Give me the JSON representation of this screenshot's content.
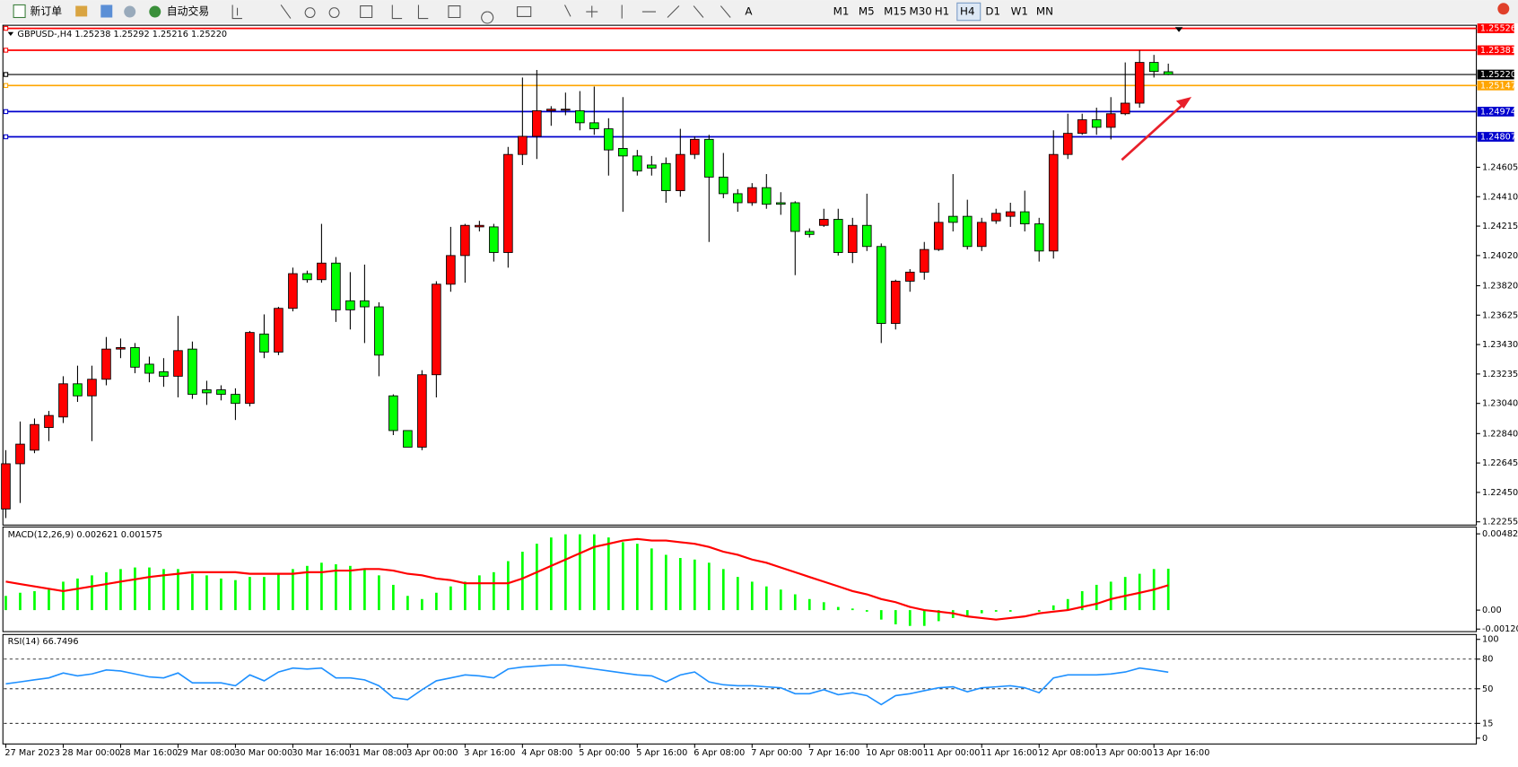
{
  "toolbar": {
    "buttons": [
      "新订单",
      "自动交易"
    ],
    "timeframes": [
      "M1",
      "M5",
      "M15",
      "M30",
      "H1",
      "H4",
      "D1",
      "W1",
      "MN"
    ],
    "active_timeframe": 5
  },
  "chart_data": [
    {
      "type": "candlestick",
      "title": "GBPUSD-,H4  1.25238 1.25292 1.25216 1.25220",
      "categories": [
        "27 Mar 2023",
        null,
        null,
        null,
        "28 Mar 00:00",
        null,
        null,
        null,
        "28 Mar 16:00",
        null,
        null,
        null,
        "29 Mar 08:00",
        null,
        null,
        null,
        "30 Mar 00:00",
        null,
        null,
        null,
        "30 Mar 16:00",
        null,
        null,
        null,
        "31 Mar 08:00",
        null,
        null,
        null,
        "3 Apr 00:00",
        null,
        null,
        null,
        "3 Apr 16:00",
        null,
        null,
        null,
        "4 Apr 08:00",
        null,
        null,
        null,
        "5 Apr 00:00",
        null,
        null,
        null,
        "5 Apr 16:00",
        null,
        null,
        null,
        "6 Apr 08:00",
        null,
        null,
        null,
        "7 Apr 00:00",
        null,
        null,
        null,
        "7 Apr 16:00",
        null,
        null,
        null,
        "10 Apr 08:00",
        null,
        null,
        null,
        "11 Apr 00:00",
        null,
        null,
        null,
        "11 Apr 16:00",
        null,
        null,
        null,
        "12 Apr 08:00",
        null,
        null,
        null,
        "13 Apr 00:00",
        null,
        null,
        null,
        "13 Apr 16:00",
        null
      ],
      "open": [
        1.2234,
        1.2264,
        1.2273,
        1.2288,
        1.2295,
        1.2317,
        1.2309,
        1.232,
        1.234,
        1.2341,
        1.233,
        1.2325,
        1.2322,
        1.234,
        1.2313,
        1.2313,
        1.231,
        1.2304,
        1.235,
        1.2338,
        1.2367,
        1.239,
        1.2386,
        1.2397,
        1.2372,
        1.2372,
        1.2368,
        1.2309,
        1.2286,
        1.2275,
        1.2323,
        1.2383,
        1.2402,
        1.2421,
        1.2421,
        1.2404,
        1.2469,
        1.2481,
        1.2498,
        1.2499,
        1.2498,
        1.249,
        1.2486,
        1.2473,
        1.2468,
        1.2462,
        1.2463,
        1.2445,
        1.2469,
        1.2479,
        1.2454,
        1.2443,
        1.2437,
        1.2447,
        1.2437,
        1.2437,
        1.2418,
        1.2422,
        1.2426,
        1.2404,
        1.2422,
        1.2408,
        1.2357,
        1.2385,
        1.2391,
        1.2406,
        1.2428,
        1.2428,
        1.2408,
        1.2425,
        1.2428,
        1.2431,
        1.2423,
        1.2405,
        1.2469,
        1.2483,
        1.2492,
        1.2487,
        1.2496,
        1.2503,
        1.253,
        1.25238
      ],
      "high": [
        1.2273,
        1.2292,
        1.2294,
        1.2299,
        1.2322,
        1.2329,
        1.2329,
        1.2348,
        1.2347,
        1.2344,
        1.2335,
        1.2334,
        1.2362,
        1.2345,
        1.2319,
        1.2316,
        1.2314,
        1.2352,
        1.2363,
        1.2368,
        1.2394,
        1.2392,
        1.2423,
        1.2401,
        1.2391,
        1.2396,
        1.2371,
        1.231,
        1.2286,
        1.2326,
        1.2385,
        1.2421,
        1.2423,
        1.2425,
        1.2423,
        1.2474,
        1.252,
        1.2525,
        1.2501,
        1.251,
        1.2511,
        1.2514,
        1.2493,
        1.2507,
        1.2472,
        1.2468,
        1.2467,
        1.2486,
        1.2481,
        1.2482,
        1.247,
        1.2446,
        1.245,
        1.2456,
        1.2444,
        1.2438,
        1.242,
        1.2433,
        1.2433,
        1.2427,
        1.2443,
        1.241,
        1.2386,
        1.2393,
        1.2411,
        1.2437,
        1.2456,
        1.2439,
        1.2427,
        1.2433,
        1.2437,
        1.2445,
        1.2427,
        1.2485,
        1.2496,
        1.2496,
        1.25,
        1.2507,
        1.253,
        1.2538,
        1.2535,
        1.25292
      ],
      "low": [
        1.2228,
        1.2238,
        1.2271,
        1.2279,
        1.2291,
        1.2305,
        1.2279,
        1.2316,
        1.2334,
        1.2324,
        1.2318,
        1.2315,
        1.2308,
        1.2307,
        1.2303,
        1.2306,
        1.2293,
        1.2302,
        1.2334,
        1.2336,
        1.2365,
        1.2384,
        1.2384,
        1.2358,
        1.2353,
        1.2344,
        1.2322,
        1.2283,
        1.2275,
        1.2273,
        1.2308,
        1.2378,
        1.2384,
        1.2418,
        1.2398,
        1.2394,
        1.2462,
        1.2466,
        1.2488,
        1.2495,
        1.2485,
        1.2482,
        1.2455,
        1.2431,
        1.2455,
        1.2455,
        1.2437,
        1.2441,
        1.2466,
        1.2411,
        1.244,
        1.2431,
        1.2435,
        1.2433,
        1.2429,
        1.2389,
        1.2414,
        1.2421,
        1.2402,
        1.2397,
        1.2405,
        1.2344,
        1.2353,
        1.2378,
        1.2386,
        1.2405,
        1.2418,
        1.2406,
        1.2405,
        1.2423,
        1.2421,
        1.2418,
        1.2398,
        1.24,
        1.2466,
        1.2482,
        1.2482,
        1.2479,
        1.2495,
        1.25,
        1.252,
        1.25216
      ],
      "close": [
        1.2264,
        1.2277,
        1.229,
        1.2296,
        1.2317,
        1.2309,
        1.232,
        1.234,
        1.2341,
        1.2328,
        1.2324,
        1.2322,
        1.2339,
        1.231,
        1.2311,
        1.231,
        1.2304,
        1.2351,
        1.2338,
        1.2367,
        1.239,
        1.2386,
        1.2397,
        1.2366,
        1.2366,
        1.2368,
        1.2336,
        1.2286,
        1.2275,
        1.2323,
        1.2383,
        1.2402,
        1.2422,
        1.2422,
        1.2404,
        1.2469,
        1.2481,
        1.2498,
        1.2499,
        1.2499,
        1.249,
        1.2486,
        1.2472,
        1.2468,
        1.2458,
        1.246,
        1.2445,
        1.2469,
        1.2479,
        1.2454,
        1.2443,
        1.2437,
        1.2447,
        1.2436,
        1.2436,
        1.2418,
        1.2416,
        1.2426,
        1.2404,
        1.2422,
        1.2408,
        1.2357,
        1.2385,
        1.2391,
        1.2406,
        1.2424,
        1.2424,
        1.2408,
        1.2424,
        1.243,
        1.2431,
        1.2423,
        1.2405,
        1.2469,
        1.2483,
        1.2492,
        1.2487,
        1.2496,
        1.2503,
        1.253,
        1.2524,
        1.2522
      ],
      "up_color": "#ff0000",
      "down_color": "#00ff00",
      "ylim": [
        1.2224,
        1.2554
      ],
      "yticks": [
        1.22255,
        {
          "value": 1.2245,
          "label": "1.22450"
        },
        1.22645,
        {
          "value": 1.2284,
          "label": "1.22840"
        },
        {
          "value": 1.2304,
          "label": "1.23040"
        },
        1.23235,
        {
          "value": 1.2343,
          "label": "1.23430"
        },
        1.23625,
        {
          "value": 1.2382,
          "label": "1.23820"
        },
        {
          "value": 1.2402,
          "label": "1.24020"
        },
        1.24215,
        {
          "value": 1.2441,
          "label": "1.24410"
        },
        1.24605
      ],
      "levels": [
        {
          "value": 1.25526,
          "color": "#ff0000"
        },
        {
          "value": 1.25381,
          "color": "#ff0000"
        },
        {
          "value": 1.2522,
          "label": "1.25220",
          "color": "#000000"
        },
        {
          "value": 1.25147,
          "color": "#ffa500"
        },
        {
          "value": 1.24974,
          "color": "#0000cd"
        },
        {
          "value": 1.24807,
          "color": "#0000cd"
        }
      ]
    },
    {
      "type": "macd",
      "title": "MACD(12,26,9) 0.002621 0.001575",
      "values": [
        0.0009,
        0.0011,
        0.0012,
        0.0013,
        0.0018,
        0.002,
        0.0022,
        0.0024,
        0.0026,
        0.0027,
        0.0027,
        0.0026,
        0.0026,
        0.0023,
        0.0022,
        0.002,
        0.0019,
        0.0021,
        0.0021,
        0.0023,
        0.0026,
        0.0028,
        0.003,
        0.0029,
        0.0028,
        0.0026,
        0.0022,
        0.0016,
        0.0009,
        0.0007,
        0.0011,
        0.0015,
        0.0018,
        0.0022,
        0.0024,
        0.0031,
        0.0037,
        0.0042,
        0.0046,
        0.0048,
        0.0048,
        0.0048,
        0.0046,
        0.0043,
        0.0042,
        0.0039,
        0.0035,
        0.0033,
        0.0032,
        0.003,
        0.0026,
        0.0021,
        0.0018,
        0.0015,
        0.0013,
        0.001,
        0.0007,
        0.0005,
        0.0002,
        0.0001,
        -0.0001,
        -0.0006,
        -0.0009,
        -0.001,
        -0.001,
        -0.0007,
        -0.0005,
        -0.0004,
        -0.0002,
        -0.0001,
        -0.0001,
        0,
        -0.0001,
        0.0003,
        0.0007,
        0.0012,
        0.0016,
        0.0018,
        0.0021,
        0.0023,
        0.0026,
        0.002621
      ],
      "color": "#00ff00",
      "signal": [
        0.0018,
        0.00165,
        0.0015,
        0.00135,
        0.0012,
        0.00135,
        0.0015,
        0.00165,
        0.0018,
        0.00195,
        0.0021,
        0.0022,
        0.0023,
        0.0024,
        0.0024,
        0.0024,
        0.0024,
        0.0023,
        0.0023,
        0.0023,
        0.0023,
        0.0024,
        0.0024,
        0.0025,
        0.0025,
        0.0026,
        0.0026,
        0.0025,
        0.0023,
        0.0022,
        0.002,
        0.0019,
        0.0017,
        0.0017,
        0.0017,
        0.0017,
        0.002,
        0.0024,
        0.0028,
        0.0032,
        0.0036,
        0.004,
        0.0042,
        0.0044,
        0.0045,
        0.0044,
        0.0044,
        0.0043,
        0.0042,
        0.004,
        0.0037,
        0.0035,
        0.0032,
        0.003,
        0.0027,
        0.0024,
        0.0021,
        0.0018,
        0.0015,
        0.0012,
        0.001,
        0.0007,
        0.0005,
        0.0002,
        0,
        -0.0001,
        -0.0002,
        -0.0004,
        -0.0005,
        -0.0006,
        -0.0005,
        -0.0004,
        -0.0002,
        -0.0001,
        0,
        0.0002,
        0.0004,
        0.0007,
        0.0009,
        0.0011,
        0.0013,
        0.001575
      ],
      "signal_color": "#ff0000",
      "ylim": [
        -0.0013,
        0.0052
      ],
      "yticks": [
        0.004828,
        {
          "value": 0,
          "label": "0.00"
        },
        -0.001201
      ]
    },
    {
      "type": "line",
      "title": "RSI(14) 66.7496",
      "values": [
        55,
        57,
        59,
        61,
        66,
        63,
        65,
        69,
        68,
        65,
        62,
        61,
        66,
        56,
        56,
        56,
        53,
        64,
        58,
        67,
        71,
        70,
        71,
        61,
        61,
        59,
        53,
        41,
        39,
        49,
        58,
        61,
        64,
        63,
        61,
        70,
        72,
        73,
        74,
        74,
        72,
        70,
        68,
        66,
        64,
        63,
        57,
        64,
        67,
        57,
        54,
        53,
        53,
        52,
        51,
        45,
        45,
        49,
        44,
        46,
        43,
        34,
        43,
        45,
        48,
        51,
        52,
        47,
        51,
        52,
        53,
        51,
        46,
        61,
        64,
        64,
        64,
        65,
        67,
        71,
        69,
        66.7496
      ],
      "color": "#1e90ff",
      "ylim": [
        0,
        100
      ],
      "yticks": [
        100,
        80,
        50,
        15,
        0
      ],
      "levels": [
        80,
        50,
        15
      ]
    }
  ]
}
